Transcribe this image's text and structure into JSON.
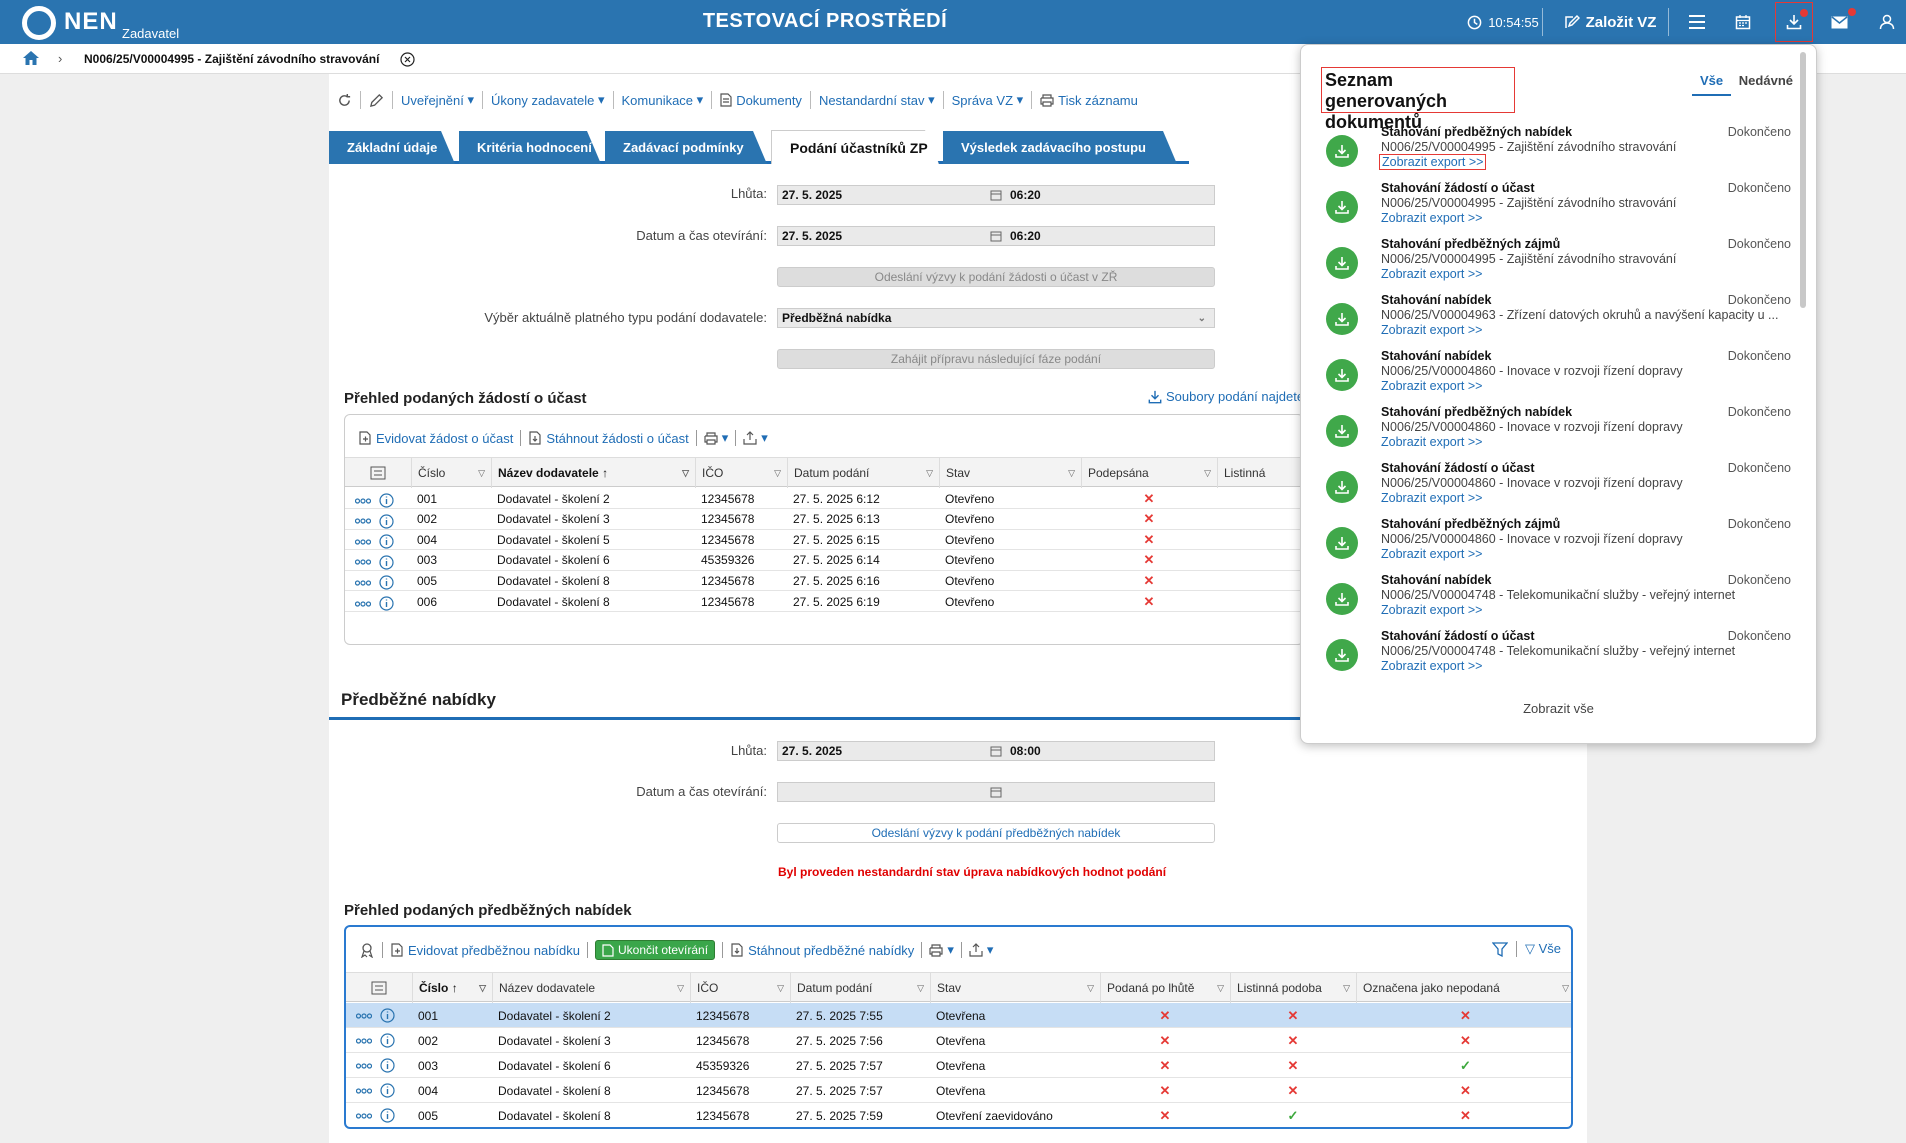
{
  "topbar": {
    "app_name": "NEN",
    "app_sub": "Zadavatel",
    "env_title": "TESTOVACÍ PROSTŘEDÍ",
    "clock": "10:54:55",
    "create_label": "Založit VZ"
  },
  "breadcrumb": {
    "title": "N006/25/V00004995 - Zajištění závodního stravování"
  },
  "toolbar": {
    "items": [
      "Uveřejnění",
      "Úkony zadavatele",
      "Komunikace",
      "Dokumenty",
      "Nestandardní stav",
      "Správa VZ",
      "Tisk záznamu"
    ]
  },
  "tabs": [
    "Základní údaje",
    "Kritéria hodnocení",
    "Zadávací podmínky",
    "Podání účastníků ZP",
    "Výsledek zadávacího postupu"
  ],
  "form1": {
    "lhuta_label": "Lhůta:",
    "lhuta_date": "27. 5. 2025",
    "lhuta_time": "06:20",
    "open_label": "Datum a čas otevírání:",
    "open_date": "27. 5. 2025",
    "open_time": "06:20",
    "send_btn": "Odeslání výzvy k podání žádosti o účast v ZŘ",
    "type_label": "Výběr aktuálně platného typu podání dodavatele:",
    "type_value": "Předběžná nabídka",
    "next_btn": "Zahájit přípravu následující fáze podání"
  },
  "section1": {
    "title": "Přehled podaných žádostí o účast",
    "files_link": "Soubory podání najdete"
  },
  "grid1": {
    "tools": [
      "Evidovat žádost o účast",
      "Stáhnout žádosti o účast"
    ],
    "headers": [
      "Číslo",
      "Název dodavatele",
      "IČO",
      "Datum podání",
      "Stav",
      "Podepsána",
      "Listinná"
    ],
    "rows": [
      {
        "num": "001",
        "name": "Dodavatel - školení 2",
        "ico": "12345678",
        "date": "27. 5. 2025 6:12",
        "state": "Otevřeno",
        "signed": "✕"
      },
      {
        "num": "002",
        "name": "Dodavatel - školení 3",
        "ico": "12345678",
        "date": "27. 5. 2025 6:13",
        "state": "Otevřeno",
        "signed": "✕"
      },
      {
        "num": "004",
        "name": "Dodavatel - školení 5",
        "ico": "12345678",
        "date": "27. 5. 2025 6:15",
        "state": "Otevřeno",
        "signed": "✕"
      },
      {
        "num": "003",
        "name": "Dodavatel - školení 6",
        "ico": "45359326",
        "date": "27. 5. 2025 6:14",
        "state": "Otevřeno",
        "signed": "✕"
      },
      {
        "num": "005",
        "name": "Dodavatel - školení 8",
        "ico": "12345678",
        "date": "27. 5. 2025 6:16",
        "state": "Otevřeno",
        "signed": "✕"
      },
      {
        "num": "006",
        "name": "Dodavatel - školení 8",
        "ico": "12345678",
        "date": "27. 5. 2025 6:19",
        "state": "Otevřeno",
        "signed": "✕"
      }
    ]
  },
  "section2": {
    "title": "Předběžné nabídky"
  },
  "form2": {
    "lhuta_label": "Lhůta:",
    "lhuta_date": "27. 5. 2025",
    "lhuta_time": "08:00",
    "open_label": "Datum a čas otevírání:",
    "send_btn": "Odeslání výzvy k podání předběžných nabídek",
    "warning": "Byl proveden nestandardní stav úprava nabídkových hodnot podání"
  },
  "section3": {
    "title": "Přehled podaných předběžných nabídek"
  },
  "grid2": {
    "tools": [
      "Evidovat předběžnou nabídku",
      "Ukončit otevírání",
      "Stáhnout předběžné nabídky"
    ],
    "all_label": "Vše",
    "headers": [
      "Číslo",
      "Název dodavatele",
      "IČO",
      "Datum podání",
      "Stav",
      "Podaná po lhůtě",
      "Listinná podoba",
      "Označena jako nepodaná"
    ],
    "rows": [
      {
        "num": "001",
        "name": "Dodavatel - školení 2",
        "ico": "12345678",
        "date": "27. 5. 2025 7:55",
        "state": "Otevřena",
        "late": "✕",
        "paper": "✕",
        "unsub": "✕"
      },
      {
        "num": "002",
        "name": "Dodavatel - školení 3",
        "ico": "12345678",
        "date": "27. 5. 2025 7:56",
        "state": "Otevřena",
        "late": "✕",
        "paper": "✕",
        "unsub": "✕"
      },
      {
        "num": "003",
        "name": "Dodavatel - školení 6",
        "ico": "45359326",
        "date": "27. 5. 2025 7:57",
        "state": "Otevřena",
        "late": "✕",
        "paper": "✕",
        "unsub": "✓"
      },
      {
        "num": "004",
        "name": "Dodavatel - školení 8",
        "ico": "12345678",
        "date": "27. 5. 2025 7:57",
        "state": "Otevřena",
        "late": "✕",
        "paper": "✕",
        "unsub": "✕"
      },
      {
        "num": "005",
        "name": "Dodavatel - školení 8",
        "ico": "12345678",
        "date": "27. 5. 2025 7:59",
        "state": "Otevření zaevidováno",
        "late": "✕",
        "paper": "✓",
        "unsub": "✕"
      }
    ]
  },
  "panel": {
    "title": "Seznam generovaných dokumentů",
    "tab_all": "Vše",
    "tab_recent": "Nedávné",
    "footer": "Zobrazit vše",
    "items": [
      {
        "name": "Stahování předběžných nabídek",
        "desc": "N006/25/V00004995 - Zajištění závodního stravování",
        "link": "Zobrazit export >>",
        "status": "Dokončeno"
      },
      {
        "name": "Stahování žádostí o účast",
        "desc": "N006/25/V00004995 - Zajištění závodního stravování",
        "link": "Zobrazit export >>",
        "status": "Dokončeno"
      },
      {
        "name": "Stahování předběžných zájmů",
        "desc": "N006/25/V00004995 - Zajištění závodního stravování",
        "link": "Zobrazit export >>",
        "status": "Dokončeno"
      },
      {
        "name": "Stahování nabídek",
        "desc": "N006/25/V00004963 - Zřízení datových okruhů a navýšení kapacity u ...",
        "link": "Zobrazit export >>",
        "status": "Dokončeno"
      },
      {
        "name": "Stahování nabídek",
        "desc": "N006/25/V00004860 - Inovace v rozvoji řízení dopravy",
        "link": "Zobrazit export >>",
        "status": "Dokončeno"
      },
      {
        "name": "Stahování předběžných nabídek",
        "desc": "N006/25/V00004860 - Inovace v rozvoji řízení dopravy",
        "link": "Zobrazit export >>",
        "status": "Dokončeno"
      },
      {
        "name": "Stahování žádostí o účast",
        "desc": "N006/25/V00004860 - Inovace v rozvoji řízení dopravy",
        "link": "Zobrazit export >>",
        "status": "Dokončeno"
      },
      {
        "name": "Stahování předběžných zájmů",
        "desc": "N006/25/V00004860 - Inovace v rozvoji řízení dopravy",
        "link": "Zobrazit export >>",
        "status": "Dokončeno"
      },
      {
        "name": "Stahování nabídek",
        "desc": "N006/25/V00004748 - Telekomunikační služby - veřejný internet",
        "link": "Zobrazit export >>",
        "status": "Dokončeno"
      },
      {
        "name": "Stahování žádostí o účast",
        "desc": "N006/25/V00004748 - Telekomunikační služby - veřejný internet",
        "link": "Zobrazit export >>",
        "status": "Dokončeno"
      }
    ]
  },
  "colors": {
    "brand": "#2a74b0",
    "link": "#1f6db5",
    "success": "#40a84a",
    "error": "#e53935"
  }
}
